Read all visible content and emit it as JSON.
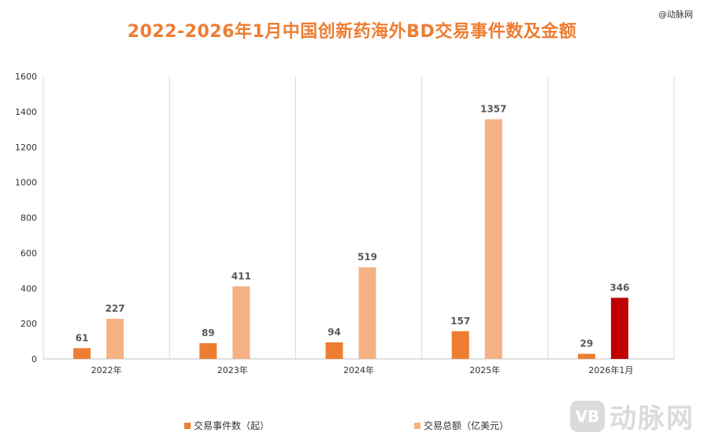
{
  "source_tag": "@动脉网",
  "watermark": {
    "logo_text": "VB",
    "brand": "动脉网"
  },
  "colors": {
    "series1": "#ED7D31",
    "series2": "#F4B183",
    "highlight": "#C00000",
    "grid": "#D9D9D9",
    "axis": "#BFBFBF",
    "title": "#ED7D31",
    "label": "#595959"
  },
  "chart_data": {
    "type": "bar",
    "title": "2022-2026年1月中国创新药海外BD交易事件数及金额",
    "categories": [
      "2022年",
      "2023年",
      "2024年",
      "2025年",
      "2026年1月"
    ],
    "series": [
      {
        "name": "交易事件数（起）",
        "values": [
          61,
          89,
          94,
          157,
          29
        ]
      },
      {
        "name": "交易总额（亿美元）",
        "values": [
          227,
          411,
          519,
          1357,
          346
        ]
      }
    ],
    "highlight": {
      "series": 1,
      "index": 4
    },
    "ylim": [
      0,
      1600
    ],
    "yticks": [
      0,
      200,
      400,
      600,
      800,
      1000,
      1200,
      1400,
      1600
    ],
    "xlabel": "",
    "ylabel": "",
    "grid": true,
    "legend_position": "bottom"
  }
}
